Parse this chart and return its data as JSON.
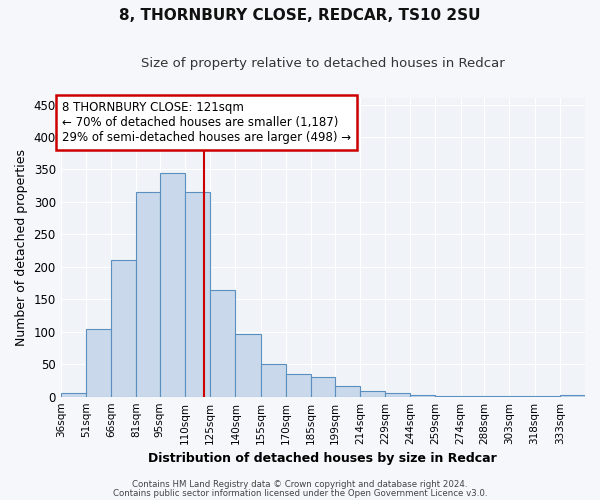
{
  "title1": "8, THORNBURY CLOSE, REDCAR, TS10 2SU",
  "title2": "Size of property relative to detached houses in Redcar",
  "xlabel": "Distribution of detached houses by size in Redcar",
  "ylabel": "Number of detached properties",
  "bin_labels": [
    "36sqm",
    "51sqm",
    "66sqm",
    "81sqm",
    "95sqm",
    "110sqm",
    "125sqm",
    "140sqm",
    "155sqm",
    "170sqm",
    "185sqm",
    "199sqm",
    "214sqm",
    "229sqm",
    "244sqm",
    "259sqm",
    "274sqm",
    "288sqm",
    "303sqm",
    "318sqm",
    "333sqm"
  ],
  "bar_heights": [
    5,
    105,
    210,
    315,
    345,
    315,
    165,
    97,
    50,
    35,
    30,
    17,
    8,
    5,
    3,
    1,
    1,
    1,
    1,
    1,
    2
  ],
  "bar_color": "#c9d9eb",
  "bar_edge_color": "#5a8fc0",
  "red_line_x": 121,
  "bin_edges": [
    36,
    51,
    66,
    81,
    95,
    110,
    125,
    140,
    155,
    170,
    185,
    199,
    214,
    229,
    244,
    259,
    274,
    288,
    303,
    318,
    333,
    348
  ],
  "annotation_text": "8 THORNBURY CLOSE: 121sqm\n← 70% of detached houses are smaller (1,187)\n29% of semi-detached houses are larger (498) →",
  "annotation_box_color": "#ffffff",
  "annotation_box_edge_color": "#cc0000",
  "ylim": [
    0,
    460
  ],
  "yticks": [
    0,
    50,
    100,
    150,
    200,
    250,
    300,
    350,
    400,
    450
  ],
  "footer1": "Contains HM Land Registry data © Crown copyright and database right 2024.",
  "footer2": "Contains public sector information licensed under the Open Government Licence v3.0.",
  "background_color": "#f5f7fa",
  "plot_background": "#f0f4f8",
  "title1_fontsize": 11,
  "title2_fontsize": 9.5,
  "grid_color": "#ffffff",
  "annotation_fontsize": 8.5
}
